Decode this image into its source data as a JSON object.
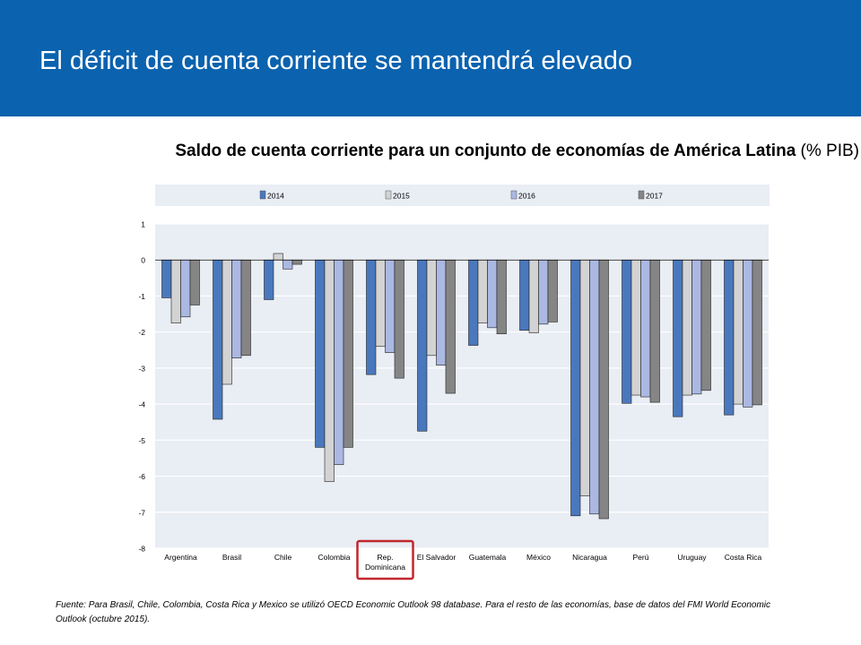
{
  "header": {
    "title": "El déficit de cuenta corriente se mantendrá elevado"
  },
  "subtitle": {
    "bold": "Saldo de cuenta corriente para un conjunto de economías de América Latina",
    "normal": "(% PIB)"
  },
  "colors": {
    "header_bg": "#0b62ae",
    "plot_bg": "#e9edf4",
    "highlight_box": "#c0272d"
  },
  "chart_data": {
    "type": "bar",
    "categories": [
      "Argentina",
      "Brasil",
      "Chile",
      "Colombia",
      "Rep. Dominicana",
      "El Salvador",
      "Guatemala",
      "México",
      "Nicaragua",
      "Perú",
      "Uruguay",
      "Costa Rica"
    ],
    "category_lines": [
      [
        "Argentina"
      ],
      [
        "Brasil"
      ],
      [
        "Chile"
      ],
      [
        "Colombia"
      ],
      [
        "Rep.",
        "Dominicana"
      ],
      [
        "El Salvador"
      ],
      [
        "Guatemala"
      ],
      [
        "México"
      ],
      [
        "Nicaragua"
      ],
      [
        "Perú"
      ],
      [
        "Uruguay"
      ],
      [
        "Costa Rica"
      ]
    ],
    "series": [
      {
        "name": "2014",
        "color": "#4a78bd",
        "values": [
          -1.05,
          -4.42,
          -1.1,
          -5.2,
          -3.18,
          -4.75,
          -2.37,
          -1.95,
          -7.1,
          -3.98,
          -4.35,
          -4.3
        ]
      },
      {
        "name": "2015",
        "color": "#d3d3d3",
        "values": [
          -1.75,
          -3.45,
          0.18,
          -6.15,
          -2.4,
          -2.65,
          -1.75,
          -2.02,
          -6.55,
          -3.75,
          -3.75,
          -4.0
        ]
      },
      {
        "name": "2016",
        "color": "#aab8e2",
        "values": [
          -1.58,
          -2.72,
          -0.25,
          -5.68,
          -2.57,
          -2.92,
          -1.88,
          -1.78,
          -7.05,
          -3.8,
          -3.72,
          -4.08
        ]
      },
      {
        "name": "2017",
        "color": "#858585",
        "values": [
          -1.25,
          -2.65,
          -0.12,
          -5.2,
          -3.28,
          -3.7,
          -2.05,
          -1.72,
          -7.18,
          -3.95,
          -3.62,
          -4.02
        ]
      }
    ],
    "ylim": [
      -8,
      1
    ],
    "yticks": [
      "1",
      "0",
      "-1",
      "-2",
      "-3",
      "-4",
      "-5",
      "-6",
      "-7",
      "-8"
    ],
    "legend_position": "top",
    "highlighted_category": "Rep. Dominicana"
  },
  "footnote": "Fuente: Para Brasil, Chile, Colombia, Costa Rica y Mexico se utilizó OECD Economic Outlook 98 database.  Para el resto de las economías, base de datos del FMI World Economic Outlook (octubre 2015)."
}
